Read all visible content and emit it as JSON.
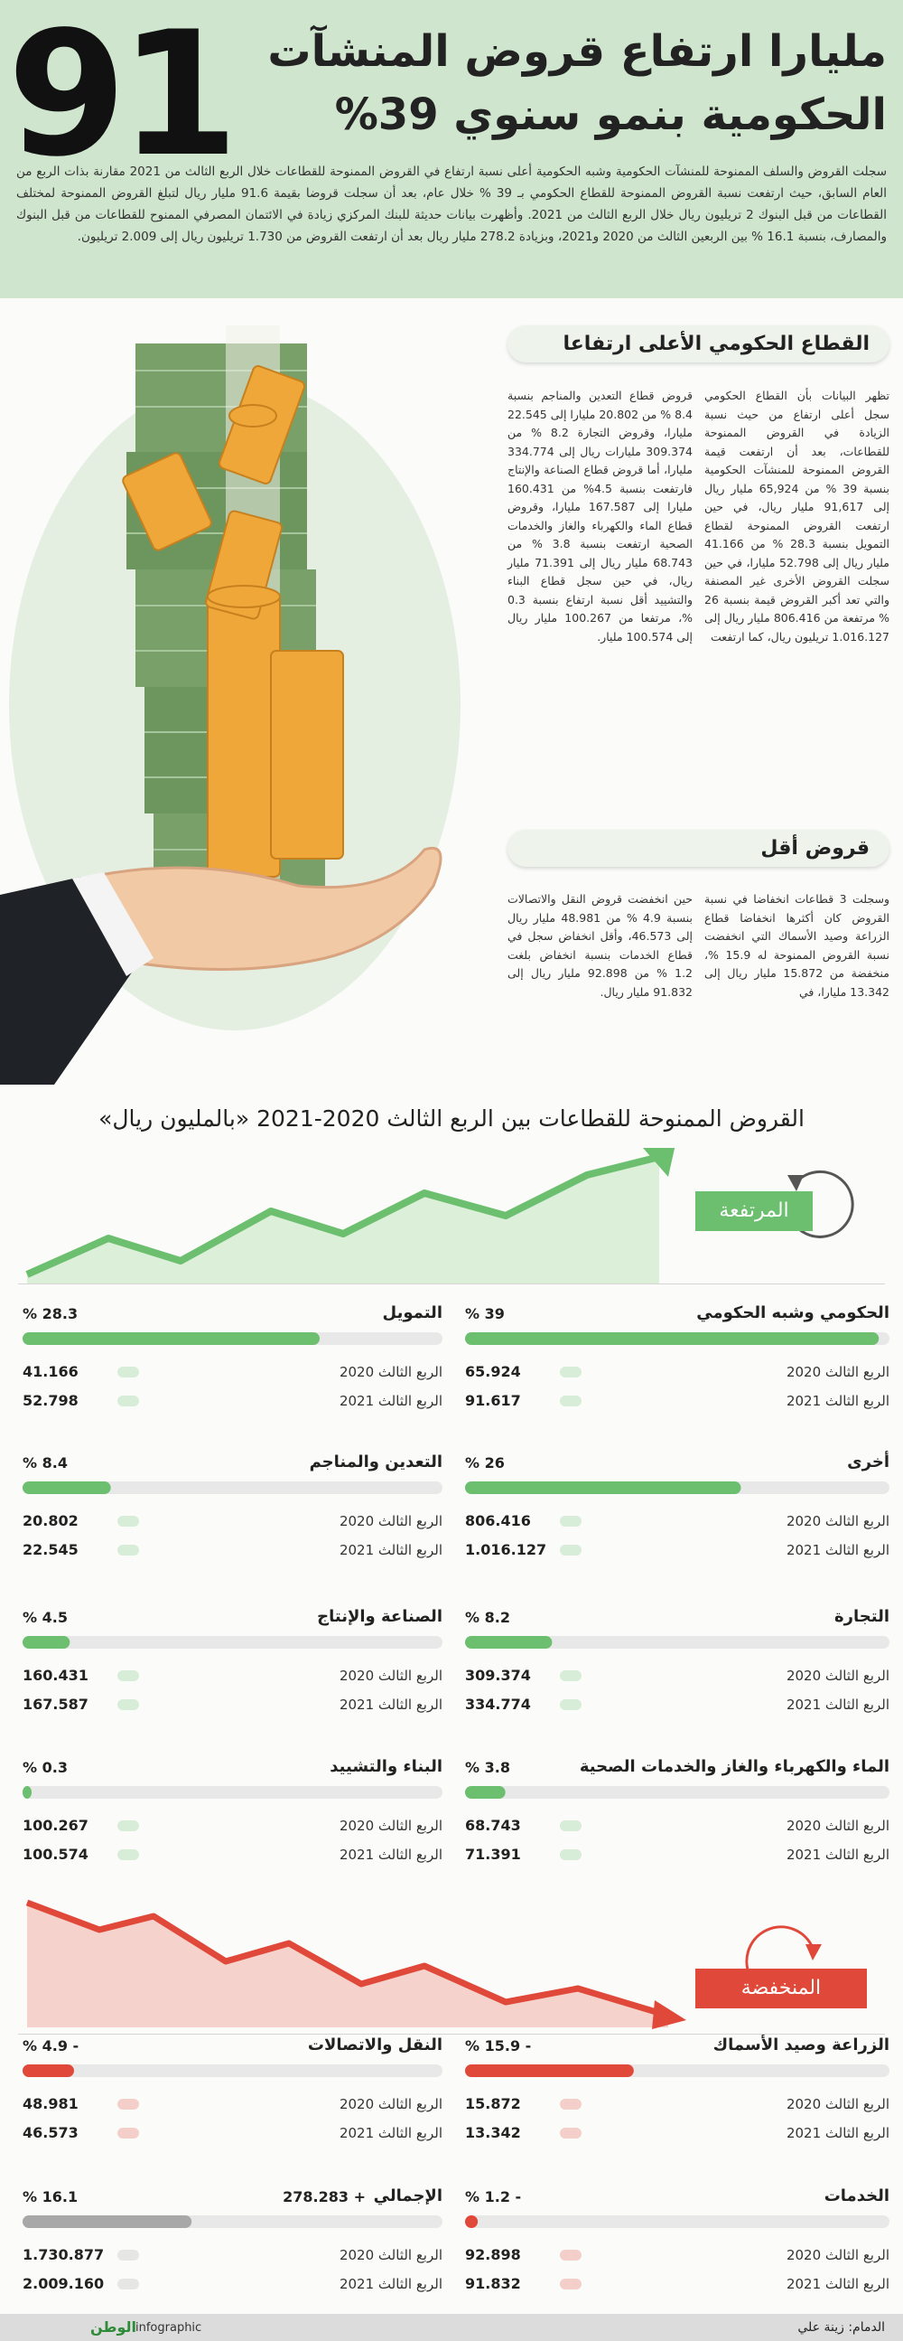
{
  "header": {
    "number": "91",
    "title_line1": "مليارا ارتفاع قروض المنشآت",
    "title_line2": "الحكومية بنمو سنوي 39%",
    "intro": "سجلت القروض والسلف الممنوحة للمنشآت الحكومية وشبه الحكومية أعلى نسبة ارتفاع في القروض الممنوحة للقطاعات خلال الربع الثالث من 2021 مقارنة بذات الربع من العام السابق، حيث ارتفعت نسبة القروض الممنوحة للقطاع الحكومي بـ 39 % خلال عام، بعد أن سجلت قروضا بقيمة 91.6 مليار ريال لتبلغ القروض الممنوحة لمختلف القطاعات من قبل البنوك 2 تريليون ريال خلال الربع الثالث من 2021. وأظهرت بيانات حديثة للبنك المركزي زيادة في الائتمان المصرفي الممنوح للقطاعات من قبل البنوك والمصارف، بنسبة 16.1 % بين الربعين الثالث من 2020 و2021، وبزيادة 278.2 مليار ريال بعد أن ارتفعت القروض من 1.730 تريليون ريال إلى 2.009 تريليون."
  },
  "sections": [
    {
      "heading": "القطاع الحكومي الأعلى ارتفاعا",
      "columns": [
        "تظهر البيانات بأن القطاع الحكومي سجل أعلى ارتفاع من حيث نسبة الزيادة في القروض الممنوحة للقطاعات، بعد أن ارتفعت قيمة القروض الممنوحة للمنشآت الحكومية بنسبة 39 % من 65,924 مليار ريال إلى 91,617 مليار ريال، في حين ارتفعت القروض الممنوحة لقطاع التمويل بنسبة 28.3 % من 41.166 مليار ريال إلى 52.798 مليارا، في حين سجلت القروض الأخرى غير المصنفة والتي تعد أكبر القروض قيمة بنسبة 26 % مرتفعة من 806.416 مليار ريال إلى 1.016.127 تريليون ريال، كما ارتفعت",
        "قروض قطاع التعدين والمناجم بنسبة 8.4 % من 20.802 مليارا إلى 22.545 مليارا، وقروض التجارة 8.2 % من 309.374 مليارات ريال إلى 334.774 مليارا، أما قروض قطاع الصناعة والإنتاج فارتفعت بنسبة 4.5% من 160.431 مليارا إلى 167.587 مليارا، وقروض قطاع الماء والكهرباء والغاز والخدمات الصحية ارتفعت بنسبة 3.8 % من 68.743 مليار ريال إلى 71.391 مليار ريال، في حين سجل قطاع البناء والتشييد أقل نسبة ارتفاع بنسبة 0.3 %، مرتفعا من 100.267 مليار ريال إلى 100.574 مليار."
      ]
    },
    {
      "heading": "قروض أقل",
      "columns": [
        "وسجلت 3 قطاعات انخفاضا في نسبة القروض كان أكثرها انخفاضا قطاع الزراعة وصيد الأسماك التي انخفضت نسبة القروض الممنوحة له 15.9 %، منخفضة من 15.872 مليار ريال إلى 13.342 مليارا، في",
        "حين انخفضت قروض النقل والاتصالات بنسبة 4.9 % من 48.981 مليار ريال إلى 46.573، وأقل انخفاض سجل في قطاع الخدمات بنسبة انخفاض بلغت 1.2 % من 92.898 مليار ريال إلى 91.832 مليار ريال."
      ]
    }
  ],
  "chart": {
    "title": "القروض الممنوحة للقطاعات بين الربع الثالث 2020-2021 «بالمليون ريال»",
    "rising_label": "المرتفعة",
    "falling_label": "المنخفضة",
    "period_2020": "الربع الثالث 2020",
    "period_2021": "الربع الثالث 2021",
    "rising_color": "#6cbf6e",
    "falling_color": "#e0483a",
    "total_color": "#a8a8a8",
    "rising": [
      {
        "name": "الحكومي وشبه الحكومي",
        "change": 39,
        "change_label": "% 39",
        "q3_2020": "65.924",
        "q3_2021": "91.617"
      },
      {
        "name": "التمويل",
        "change": 28.3,
        "change_label": "% 28.3",
        "q3_2020": "41.166",
        "q3_2021": "52.798"
      },
      {
        "name": "أخرى",
        "change": 26,
        "change_label": "% 26",
        "q3_2020": "806.416",
        "q3_2021": "1.016.127"
      },
      {
        "name": "التعدين والمناجم",
        "change": 8.4,
        "change_label": "% 8.4",
        "q3_2020": "20.802",
        "q3_2021": "22.545"
      },
      {
        "name": "التجارة",
        "change": 8.2,
        "change_label": "% 8.2",
        "q3_2020": "309.374",
        "q3_2021": "334.774"
      },
      {
        "name": "الصناعة والإنتاج",
        "change": 4.5,
        "change_label": "% 4.5",
        "q3_2020": "160.431",
        "q3_2021": "167.587"
      },
      {
        "name": "الماء والكهرباء والغاز والخدمات الصحية",
        "change": 3.8,
        "change_label": "% 3.8",
        "q3_2020": "68.743",
        "q3_2021": "71.391"
      },
      {
        "name": "البناء والتشييد",
        "change": 0.3,
        "change_label": "% 0.3",
        "q3_2020": "100.267",
        "q3_2021": "100.574"
      }
    ],
    "falling": [
      {
        "name": "الزراعة وصيد الأسماك",
        "change": -15.9,
        "change_label": "% 15.9 -",
        "q3_2020": "15.872",
        "q3_2021": "13.342"
      },
      {
        "name": "النقل والاتصالات",
        "change": -4.9,
        "change_label": "% 4.9 -",
        "q3_2020": "48.981",
        "q3_2021": "46.573"
      },
      {
        "name": "الخدمات",
        "change": -1.2,
        "change_label": "% 1.2 -",
        "q3_2020": "92.898",
        "q3_2021": "91.832"
      }
    ],
    "total": {
      "name": "الإجمالي",
      "difference": "278.283 +",
      "change": 16.1,
      "change_label": "% 16.1",
      "q3_2020": "1.730.877",
      "q3_2021": "2.009.160"
    }
  },
  "footer": {
    "credit": "الدمام: زينة علي",
    "brand": "الوطن",
    "brand_sub": "infographic"
  }
}
